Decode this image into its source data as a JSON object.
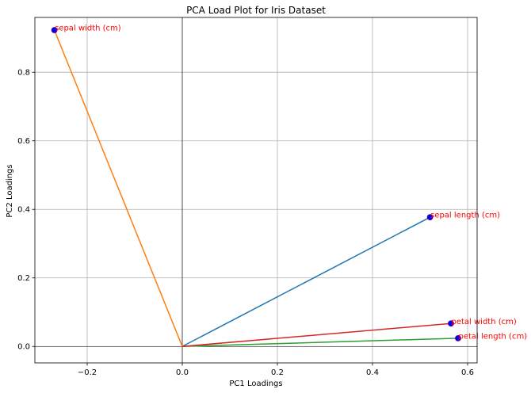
{
  "chart_data": {
    "type": "line",
    "title": "PCA Load Plot for Iris Dataset",
    "xlabel": "PC1 Loadings",
    "ylabel": "PC2 Loadings",
    "xlim": [
      -0.31,
      0.62
    ],
    "ylim": [
      -0.048,
      0.96
    ],
    "xticks": [
      -0.2,
      0.0,
      0.2,
      0.4,
      0.6
    ],
    "xtick_labels": [
      "−0.2",
      "0.0",
      "0.2",
      "0.4",
      "0.6"
    ],
    "yticks": [
      0.0,
      0.2,
      0.4,
      0.6,
      0.8
    ],
    "ytick_labels": [
      "0.0",
      "0.2",
      "0.4",
      "0.6",
      "0.8"
    ],
    "grid": true,
    "reference_lines": {
      "x": 0,
      "y": 0,
      "color": "#000000"
    },
    "point_color": "#0000ff",
    "point_label_color": "#ff0000",
    "series": [
      {
        "label": "sepal length (cm)",
        "x": 0.521,
        "y": 0.377,
        "color": "#1f77b4"
      },
      {
        "label": "sepal width (cm)",
        "x": -0.269,
        "y": 0.923,
        "color": "#ff7f0e"
      },
      {
        "label": "petal length (cm)",
        "x": 0.58,
        "y": 0.024,
        "color": "#2ca02c"
      },
      {
        "label": "petal width (cm)",
        "x": 0.565,
        "y": 0.067,
        "color": "#d62728"
      }
    ]
  }
}
